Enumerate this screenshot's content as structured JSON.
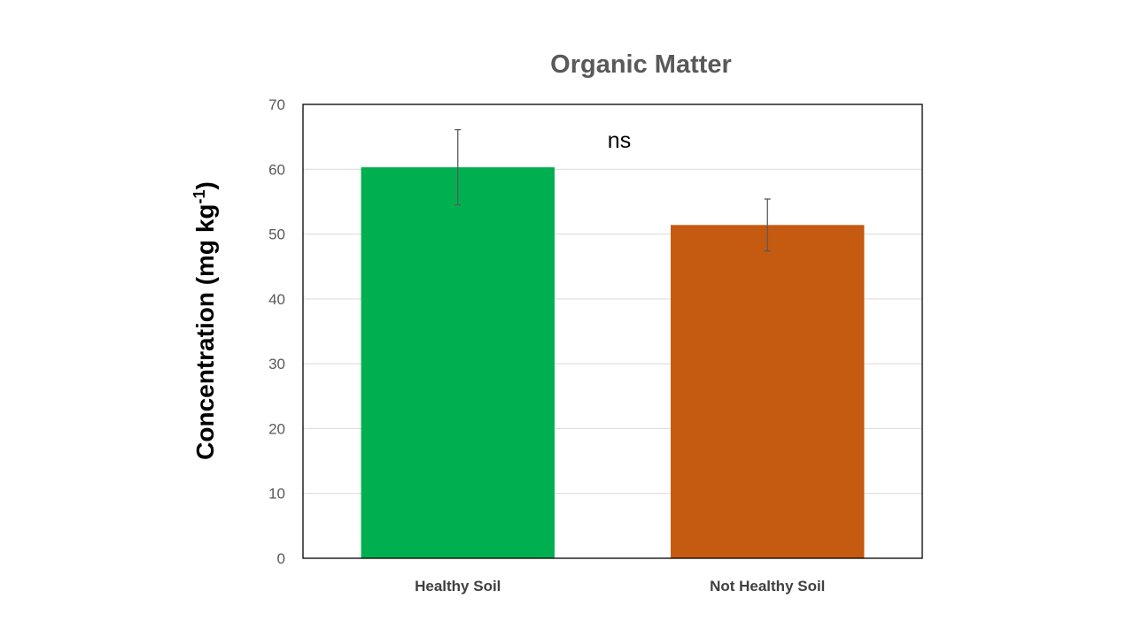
{
  "chart_data": {
    "type": "bar",
    "title": "Organic Matter",
    "xlabel": "",
    "ylabel": "Concentration (mg kg",
    "ylabel_superscript": "-1",
    "ylabel_suffix": ")",
    "categories": [
      "Healthy Soil",
      "Not Healthy Soil"
    ],
    "values": [
      60.3,
      51.4
    ],
    "error_bars": [
      5.8,
      4.0
    ],
    "colors": [
      "#00B050",
      "#C55A11"
    ],
    "ylim": [
      0,
      70
    ],
    "yticks": [
      0,
      10,
      20,
      30,
      40,
      50,
      60,
      70
    ],
    "grid": true,
    "annotation": "ns",
    "colors_meta": {
      "gridline": "#D9D9D9",
      "plot_border": "#000000",
      "error_bar": "#595959"
    }
  }
}
